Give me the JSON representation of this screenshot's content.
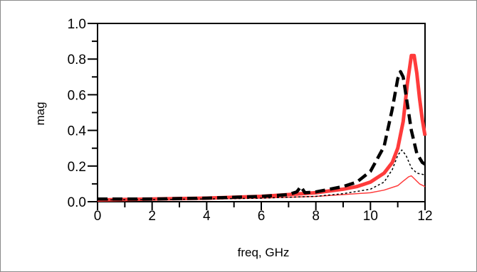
{
  "chart_data": {
    "type": "line",
    "title": "",
    "xlabel": "freq, GHz",
    "ylabel": "mag",
    "xlim": [
      0,
      12
    ],
    "ylim": [
      0,
      1
    ],
    "x_ticks": [
      "0",
      "2",
      "4",
      "6",
      "8",
      "10",
      "12"
    ],
    "y_ticks": [
      "0.0",
      "0.2",
      "0.4",
      "0.6",
      "0.8",
      "1.0"
    ],
    "grid": false,
    "legend": "none",
    "series": [
      {
        "color": "#ff3b3b",
        "style": "solid-thick",
        "x": [
          0,
          2,
          4,
          6,
          8,
          9,
          9.5,
          10,
          10.5,
          10.8,
          11.0,
          11.2,
          11.35,
          11.5,
          11.6,
          11.7,
          11.8,
          11.9,
          12.0
        ],
        "y": [
          0.01,
          0.015,
          0.02,
          0.03,
          0.05,
          0.07,
          0.085,
          0.11,
          0.16,
          0.22,
          0.3,
          0.45,
          0.66,
          0.82,
          0.82,
          0.72,
          0.58,
          0.46,
          0.37
        ]
      },
      {
        "color": "#ff3b3b",
        "style": "solid-thin",
        "x": [
          0,
          2,
          4,
          6,
          8,
          9,
          10,
          10.5,
          11.0,
          11.2,
          11.4,
          11.5,
          11.6,
          11.8,
          12.0
        ],
        "y": [
          0.01,
          0.012,
          0.015,
          0.02,
          0.03,
          0.04,
          0.05,
          0.065,
          0.09,
          0.115,
          0.14,
          0.145,
          0.13,
          0.1,
          0.085
        ]
      },
      {
        "color": "#000000",
        "style": "dashed-thick",
        "x": [
          0,
          2,
          4,
          6,
          7.0,
          7.3,
          7.45,
          7.6,
          8,
          9,
          9.5,
          10,
          10.5,
          10.8,
          11.0,
          11.1,
          11.2,
          11.3,
          11.5,
          11.7,
          11.9,
          12.0
        ],
        "y": [
          0.015,
          0.015,
          0.02,
          0.03,
          0.04,
          0.055,
          0.085,
          0.05,
          0.055,
          0.085,
          0.11,
          0.17,
          0.31,
          0.52,
          0.69,
          0.73,
          0.7,
          0.6,
          0.4,
          0.27,
          0.22,
          0.21
        ]
      },
      {
        "color": "#000000",
        "style": "dashed-thin",
        "x": [
          0,
          2,
          4,
          6,
          8,
          9,
          10,
          10.5,
          10.8,
          11.0,
          11.15,
          11.3,
          11.5,
          11.7,
          12.0
        ],
        "y": [
          0.01,
          0.012,
          0.015,
          0.02,
          0.03,
          0.045,
          0.07,
          0.11,
          0.18,
          0.26,
          0.29,
          0.26,
          0.19,
          0.16,
          0.15
        ]
      }
    ]
  }
}
